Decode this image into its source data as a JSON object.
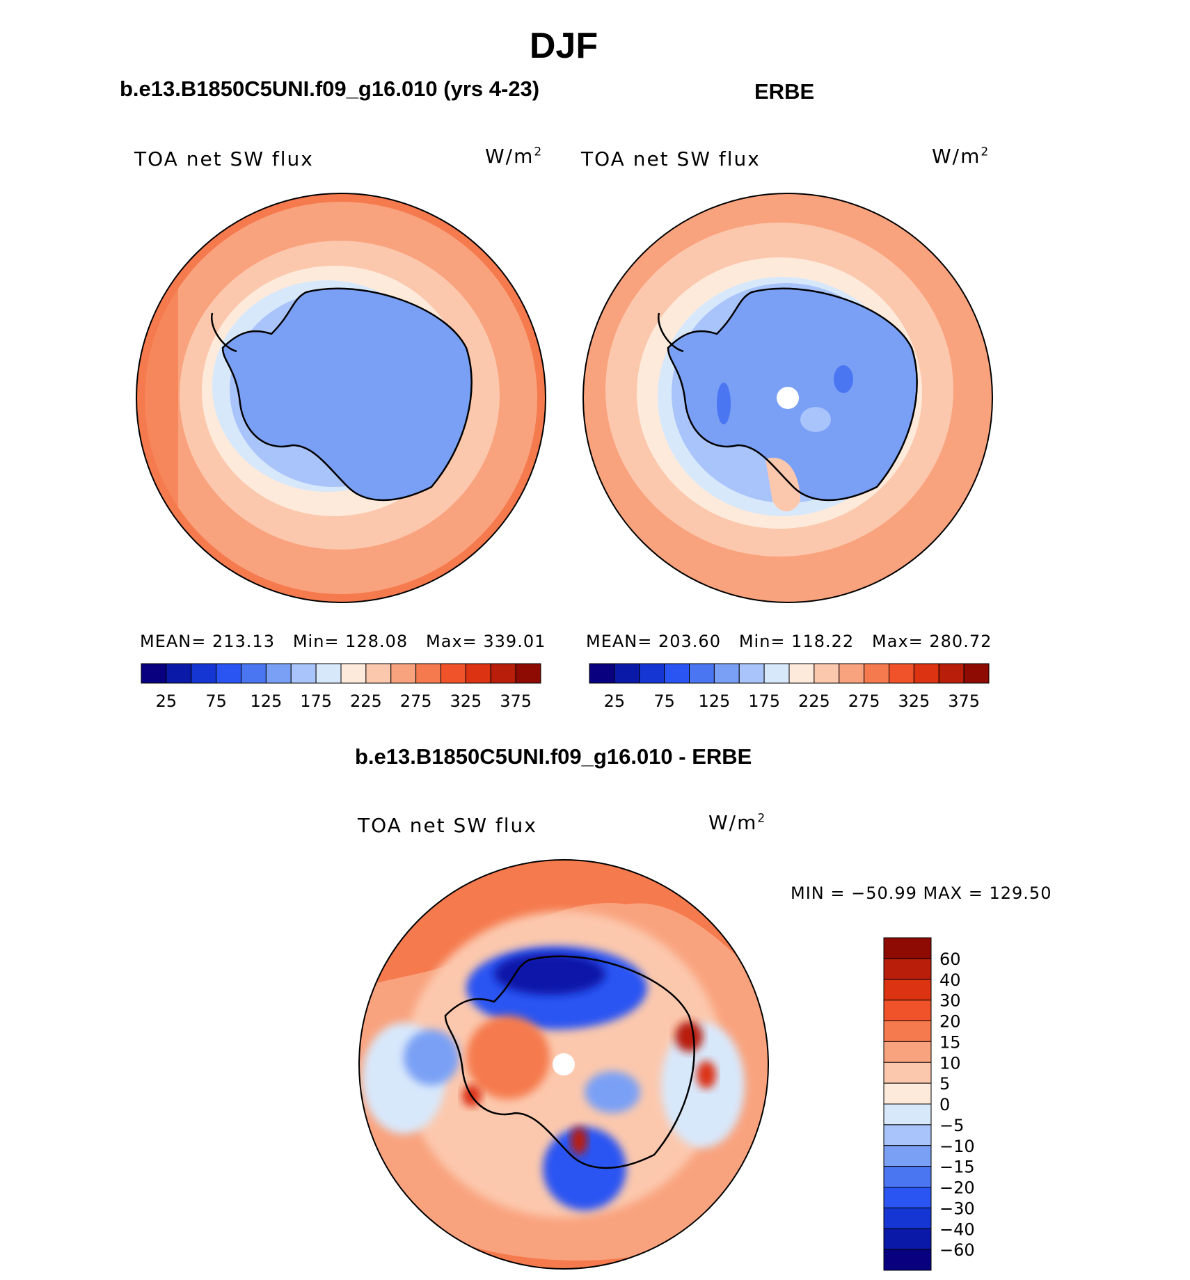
{
  "figure": {
    "season_title": "DJF",
    "model_title": "b.e13.B1850C5UNI.f09_g16.010 (yrs 4-23)",
    "obs_title": "ERBE",
    "diff_title": "b.e13.B1850C5UNI.f09_g16.010 - ERBE"
  },
  "panels": [
    {
      "variable": "TOA net SW flux",
      "units": "W/m",
      "units_sup": "2",
      "stats": "MEAN= 213.13   Min= 128.08   Max= 339.01"
    },
    {
      "variable": "TOA net SW flux",
      "units": "W/m",
      "units_sup": "2",
      "stats": "MEAN= 203.60   Min= 118.22   Max= 280.72"
    },
    {
      "variable": "TOA net SW flux",
      "units": "W/m",
      "units_sup": "2",
      "stats": "MIN = −50.99 MAX = 129.50"
    }
  ],
  "colorbar_abs": {
    "colors": [
      "#08007f",
      "#0b19a8",
      "#1536d2",
      "#2a55f2",
      "#4a76f2",
      "#7aa0f5",
      "#a8c4fa",
      "#d8e8fb",
      "#fdeadb",
      "#fcc8ad",
      "#f9a37e",
      "#f57a4e",
      "#f0522a",
      "#dc3312",
      "#b81e0a",
      "#8e0b04"
    ],
    "ticks": [
      "25",
      "75",
      "125",
      "175",
      "225",
      "275",
      "325",
      "375"
    ]
  },
  "colorbar_diff": {
    "colors": [
      "#8e0b04",
      "#b81e0a",
      "#dc3312",
      "#f0522a",
      "#f57a4e",
      "#f9a37e",
      "#fcc8ad",
      "#fdeadb",
      "#d8e8fb",
      "#a8c4fa",
      "#7aa0f5",
      "#4a76f2",
      "#2a55f2",
      "#1536d2",
      "#0b19a8",
      "#08007f"
    ],
    "ticks": [
      "60",
      "40",
      "30",
      "20",
      "15",
      "10",
      "5",
      "0",
      "−5",
      "−10",
      "−15",
      "−20",
      "−30",
      "−40",
      "−60"
    ]
  }
}
